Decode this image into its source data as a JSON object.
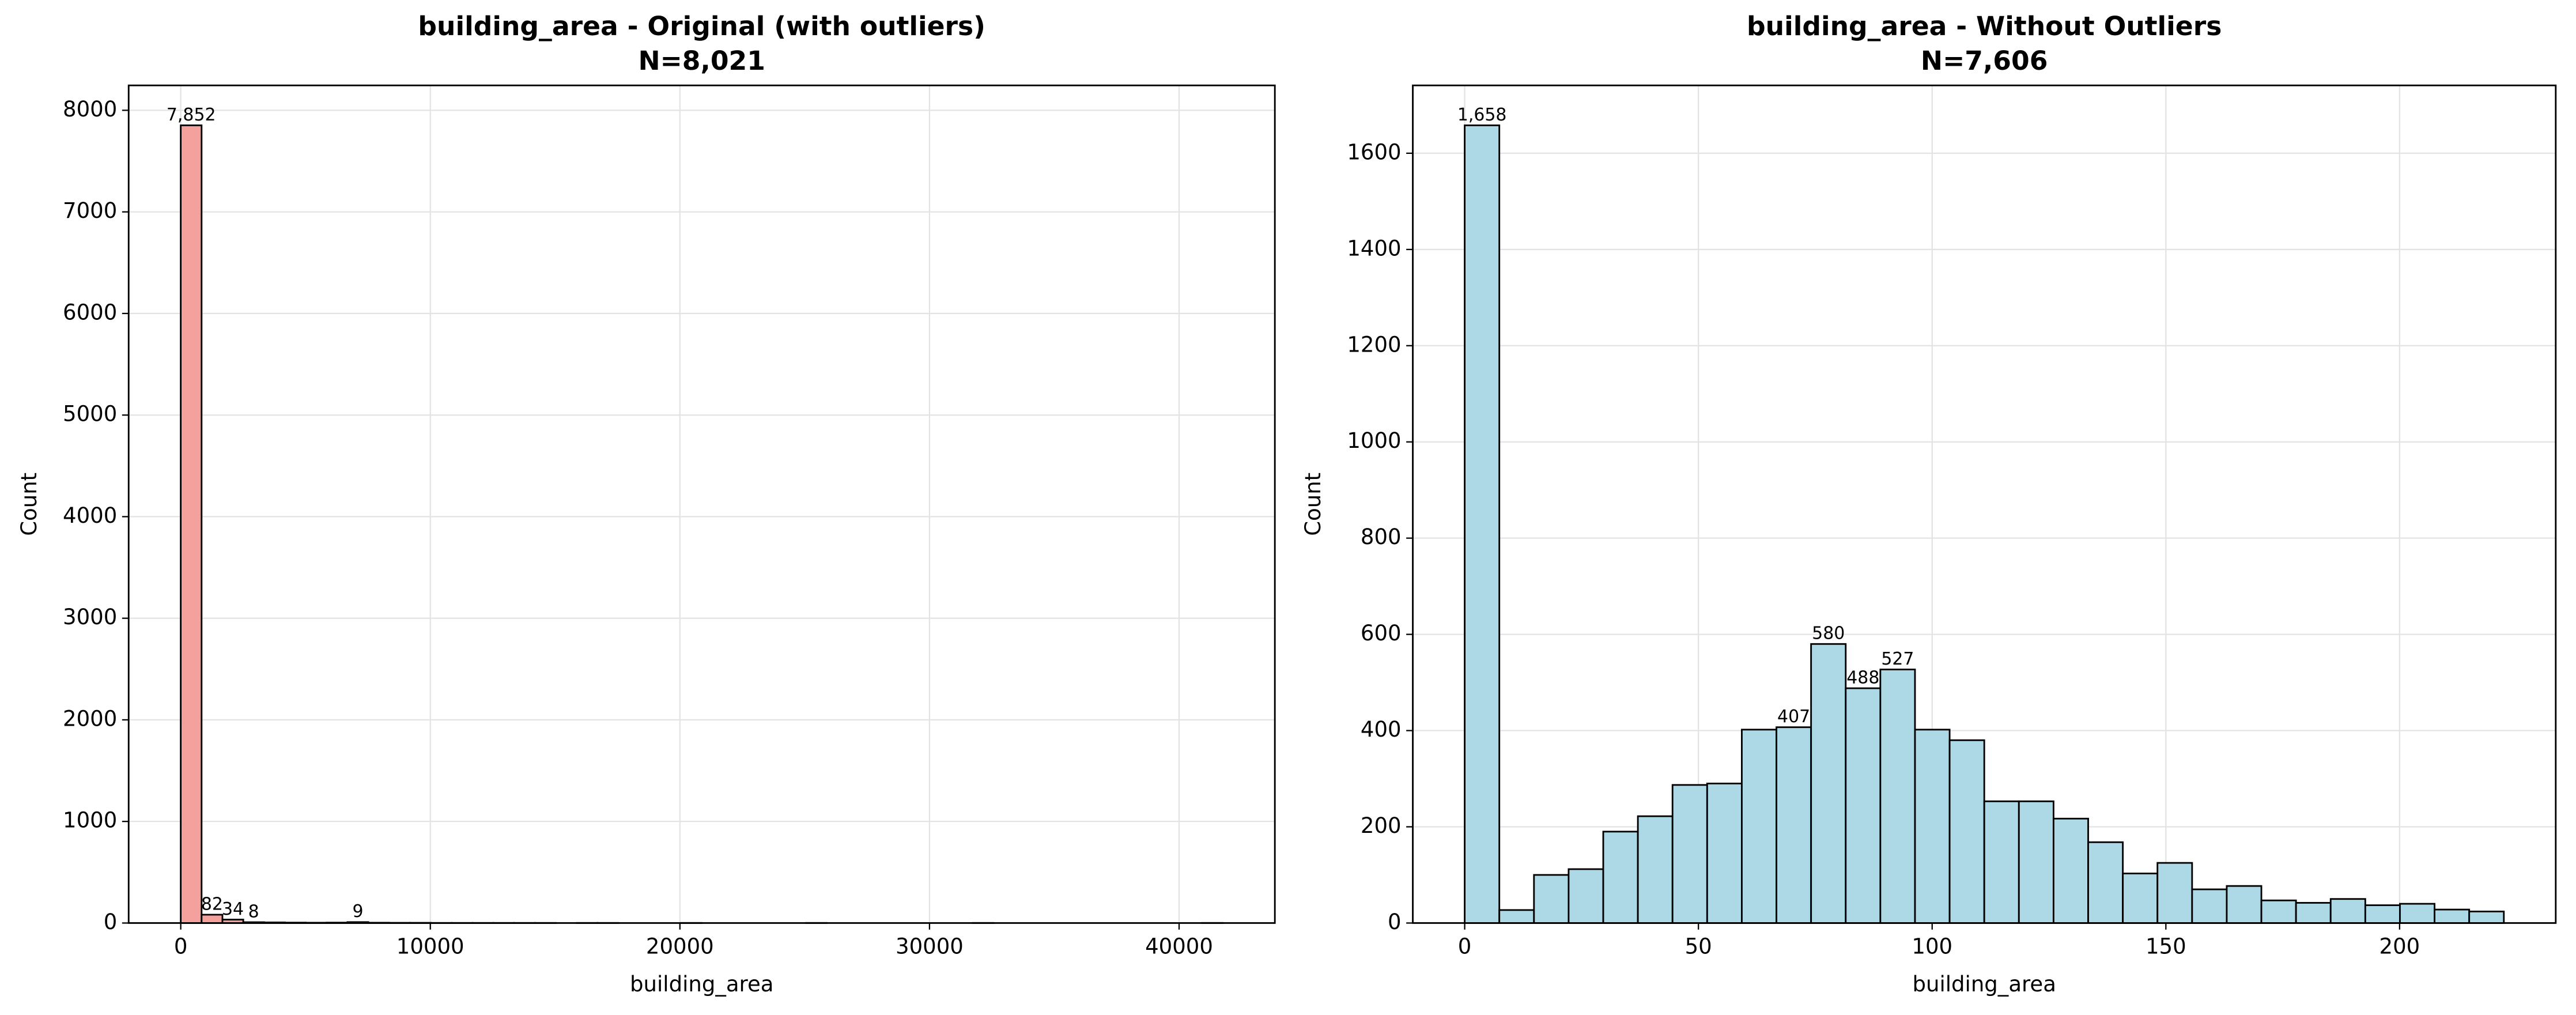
{
  "chart_data": [
    {
      "type": "histogram",
      "title": "building_area - Original (with outliers)",
      "subtitle": "N=8,021",
      "xlabel": "building_area",
      "ylabel": "Count",
      "bins": [
        0,
        835,
        1670,
        2505,
        3340,
        4175,
        5010,
        5845,
        6680,
        7515,
        8350,
        9185,
        10020,
        10855,
        11690,
        12525,
        13360,
        14195,
        15030,
        15865,
        16700,
        17535,
        18370,
        19205,
        20040,
        20875,
        21710,
        22545,
        23380,
        24215,
        25050,
        25885,
        26720,
        27555,
        28390,
        29225,
        30060,
        30895,
        31730,
        32565,
        33400,
        34235,
        35070,
        35905,
        36740,
        37575,
        38410,
        39245,
        40080,
        40915,
        41750
      ],
      "values": [
        7852,
        82,
        34,
        8,
        6,
        4,
        3,
        4,
        9,
        3,
        2,
        2,
        1,
        1,
        1,
        1,
        1,
        1,
        0,
        1,
        1,
        0,
        0,
        0,
        1,
        0,
        0,
        0,
        0,
        0,
        1,
        0,
        0,
        0,
        0,
        0,
        0,
        0,
        1,
        0,
        0,
        0,
        0,
        0,
        0,
        0,
        0,
        0,
        0,
        1
      ],
      "value_labels": [
        "7,852",
        "82",
        "34",
        "8",
        null,
        null,
        null,
        null,
        "9",
        null,
        null,
        null,
        null,
        null,
        null,
        null,
        null,
        null,
        null,
        null,
        null,
        null,
        null,
        null,
        null,
        null,
        null,
        null,
        null,
        null,
        null,
        null,
        null,
        null,
        null,
        null,
        null,
        null,
        null,
        null,
        null,
        null,
        null,
        null,
        null,
        null,
        null,
        null,
        null,
        null
      ],
      "color": "#f4a09c",
      "edgecolor": "#000000",
      "xlim": [
        -2087,
        43837
      ],
      "ylim": [
        0,
        8245
      ],
      "xticks": [
        0,
        10000,
        20000,
        30000,
        40000
      ],
      "yticks": [
        0,
        1000,
        2000,
        3000,
        4000,
        5000,
        6000,
        7000,
        8000
      ],
      "grid": true
    },
    {
      "type": "histogram",
      "title": "building_area - Without Outliers",
      "subtitle": "N=7,606",
      "xlabel": "building_area",
      "ylabel": "Count",
      "bins": [
        0,
        7.41,
        14.82,
        22.23,
        29.64,
        37.05,
        44.46,
        51.87,
        59.28,
        66.69,
        74.1,
        81.51,
        88.92,
        96.33,
        103.74,
        111.15,
        118.56,
        125.97,
        133.38,
        140.79,
        148.2,
        155.61,
        163.02,
        170.43,
        177.84,
        185.25,
        192.66,
        200.07,
        207.48,
        214.89,
        222.3
      ],
      "values": [
        1658,
        27,
        100,
        112,
        190,
        222,
        287,
        290,
        402,
        407,
        580,
        488,
        527,
        402,
        380,
        253,
        253,
        217,
        168,
        103,
        125,
        70,
        77,
        47,
        42,
        50,
        37,
        40,
        28,
        24
      ],
      "value_labels": [
        "1,658",
        null,
        null,
        null,
        null,
        null,
        null,
        null,
        null,
        "407",
        "580",
        "488",
        "527",
        null,
        null,
        null,
        null,
        null,
        null,
        null,
        null,
        null,
        null,
        null,
        null,
        null,
        null,
        null,
        null,
        null
      ],
      "color": "#add8e6",
      "edgecolor": "#000000",
      "xlim": [
        -11.1,
        233.4
      ],
      "ylim": [
        0,
        1741
      ],
      "xticks": [
        0,
        50,
        100,
        150,
        200
      ],
      "yticks": [
        0,
        200,
        400,
        600,
        800,
        1000,
        1200,
        1400,
        1600
      ],
      "grid": true
    }
  ]
}
